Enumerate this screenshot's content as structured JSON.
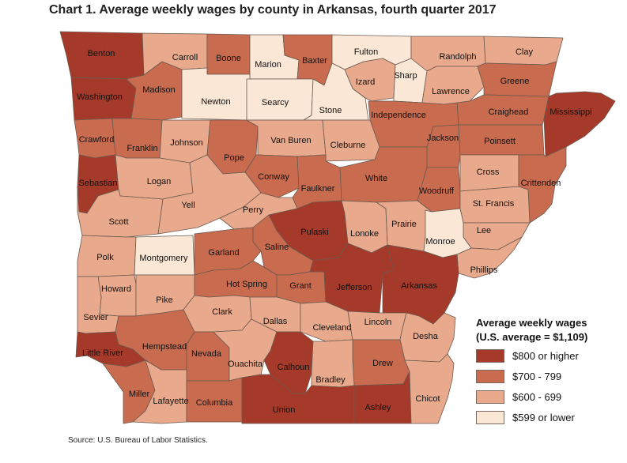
{
  "title": "Chart 1. Average weekly wages by county in Arkansas, fourth quarter 2017",
  "source": "Source: U.S. Bureau of Labor Statistics.",
  "colors": {
    "800_or_higher": "#a63a2a",
    "700_799": "#c96b4f",
    "600_699": "#e8a98c",
    "599_or_lower": "#fbe7d5"
  },
  "legend": {
    "title_line1": "Average weekly wages",
    "title_line2": "(U.S. average = $1,109)",
    "items": [
      {
        "label": "$800 or higher",
        "class": "800_or_higher"
      },
      {
        "label": "$700 - 799",
        "class": "700_799"
      },
      {
        "label": "$600 - 699",
        "class": "600_699"
      },
      {
        "label": "$599 or lower",
        "class": "599_or_lower"
      }
    ]
  },
  "counties": [
    {
      "name": "Benton",
      "class": "800_or_higher"
    },
    {
      "name": "Carroll",
      "class": "600_699"
    },
    {
      "name": "Boone",
      "class": "700_799"
    },
    {
      "name": "Marion",
      "class": "599_or_lower"
    },
    {
      "name": "Baxter",
      "class": "700_799"
    },
    {
      "name": "Fulton",
      "class": "599_or_lower"
    },
    {
      "name": "Randolph",
      "class": "600_699"
    },
    {
      "name": "Clay",
      "class": "600_699"
    },
    {
      "name": "Washington",
      "class": "800_or_higher"
    },
    {
      "name": "Madison",
      "class": "700_799"
    },
    {
      "name": "Newton",
      "class": "599_or_lower"
    },
    {
      "name": "Searcy",
      "class": "599_or_lower"
    },
    {
      "name": "Stone",
      "class": "599_or_lower"
    },
    {
      "name": "Izard",
      "class": "600_699"
    },
    {
      "name": "Sharp",
      "class": "599_or_lower"
    },
    {
      "name": "Lawrence",
      "class": "600_699"
    },
    {
      "name": "Greene",
      "class": "700_799"
    },
    {
      "name": "Mississippi",
      "class": "800_or_higher"
    },
    {
      "name": "Craighead",
      "class": "700_799"
    },
    {
      "name": "Independence",
      "class": "700_799"
    },
    {
      "name": "Crawford",
      "class": "700_799"
    },
    {
      "name": "Franklin",
      "class": "700_799"
    },
    {
      "name": "Johnson",
      "class": "600_699"
    },
    {
      "name": "Pope",
      "class": "700_799"
    },
    {
      "name": "Van Buren",
      "class": "600_699"
    },
    {
      "name": "Cleburne",
      "class": "600_699"
    },
    {
      "name": "Jackson",
      "class": "700_799"
    },
    {
      "name": "Poinsett",
      "class": "700_799"
    },
    {
      "name": "Sebastian",
      "class": "800_or_higher"
    },
    {
      "name": "Logan",
      "class": "600_699"
    },
    {
      "name": "Conway",
      "class": "700_799"
    },
    {
      "name": "Faulkner",
      "class": "700_799"
    },
    {
      "name": "White",
      "class": "700_799"
    },
    {
      "name": "Woodruff",
      "class": "700_799"
    },
    {
      "name": "Cross",
      "class": "600_699"
    },
    {
      "name": "Crittenden",
      "class": "700_799"
    },
    {
      "name": "Scott",
      "class": "600_699"
    },
    {
      "name": "Yell",
      "class": "600_699"
    },
    {
      "name": "Perry",
      "class": "600_699"
    },
    {
      "name": "Pulaski",
      "class": "800_or_higher"
    },
    {
      "name": "Lonoke",
      "class": "600_699"
    },
    {
      "name": "Prairie",
      "class": "600_699"
    },
    {
      "name": "St. Francis",
      "class": "600_699"
    },
    {
      "name": "Lee",
      "class": "600_699"
    },
    {
      "name": "Polk",
      "class": "600_699"
    },
    {
      "name": "Montgomery",
      "class": "599_or_lower"
    },
    {
      "name": "Garland",
      "class": "700_799"
    },
    {
      "name": "Saline",
      "class": "700_799"
    },
    {
      "name": "Monroe",
      "class": "599_or_lower"
    },
    {
      "name": "Phillips",
      "class": "600_699"
    },
    {
      "name": "Howard",
      "class": "600_699"
    },
    {
      "name": "Pike",
      "class": "600_699"
    },
    {
      "name": "Hot Spring",
      "class": "700_799"
    },
    {
      "name": "Grant",
      "class": "700_799"
    },
    {
      "name": "Jefferson",
      "class": "800_or_higher"
    },
    {
      "name": "Arkansas",
      "class": "800_or_higher"
    },
    {
      "name": "Sevier",
      "class": "600_699"
    },
    {
      "name": "Clark",
      "class": "600_699"
    },
    {
      "name": "Dallas",
      "class": "600_699"
    },
    {
      "name": "Cleveland",
      "class": "600_699"
    },
    {
      "name": "Lincoln",
      "class": "600_699"
    },
    {
      "name": "Desha",
      "class": "600_699"
    },
    {
      "name": "Little River",
      "class": "800_or_higher"
    },
    {
      "name": "Hempstead",
      "class": "700_799"
    },
    {
      "name": "Nevada",
      "class": "700_799"
    },
    {
      "name": "Ouachita",
      "class": "600_699"
    },
    {
      "name": "Calhoun",
      "class": "800_or_higher"
    },
    {
      "name": "Drew",
      "class": "700_799"
    },
    {
      "name": "Bradley",
      "class": "600_699"
    },
    {
      "name": "Miller",
      "class": "700_799"
    },
    {
      "name": "Lafayette",
      "class": "600_699"
    },
    {
      "name": "Columbia",
      "class": "700_799"
    },
    {
      "name": "Union",
      "class": "800_or_higher"
    },
    {
      "name": "Ashley",
      "class": "800_or_higher"
    },
    {
      "name": "Chicot",
      "class": "600_699"
    }
  ]
}
